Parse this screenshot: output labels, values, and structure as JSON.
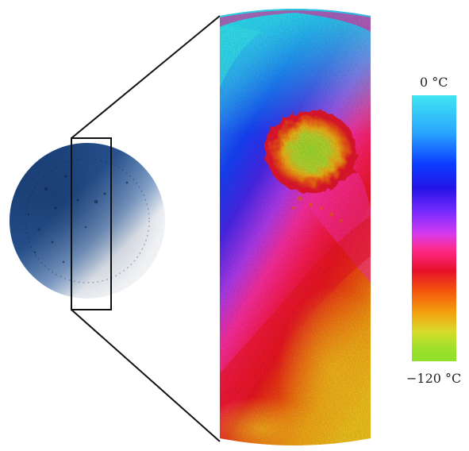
{
  "colors": {
    "puck_dark": "#1a3a70",
    "puck_light": "#f1f1f1",
    "outline": "#111111"
  },
  "scale": {
    "top_label": "0 °C",
    "bottom_label": "−120 °C"
  }
}
